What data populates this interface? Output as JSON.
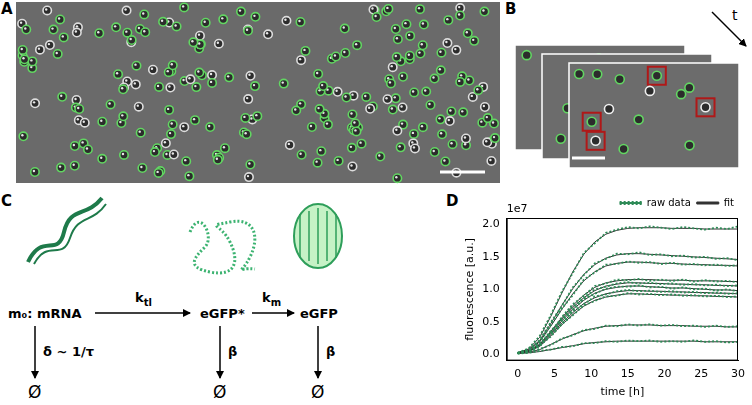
{
  "panels": [
    {
      "letter": "A",
      "type": "image"
    },
    {
      "letter": "B",
      "type": "image",
      "time_arrow_label": "t"
    },
    {
      "letter": "C",
      "type": "diagram",
      "species": [
        {
          "label": "m₀: mRNA",
          "decay": "δ ~ 1/τ",
          "sink": "Ø"
        },
        {
          "label": "eGFP*",
          "decay": "β",
          "sink": "Ø"
        },
        {
          "label": "eGFP",
          "decay": "β",
          "sink": "Ø"
        }
      ],
      "rates": [
        {
          "symbol": "k",
          "subscript": "tl"
        },
        {
          "symbol": "k",
          "subscript": "m"
        }
      ]
    }
  ],
  "chart_data": {
    "panel": "D",
    "type": "line",
    "x_label": "time [h]",
    "y_label": "fluorescence [a.u.]",
    "y_scale_label": "1e7",
    "grid": false,
    "legend": "top right",
    "xlim": [
      -1.5,
      30
    ],
    "xticks": [
      0,
      5,
      10,
      15,
      20,
      25,
      30
    ],
    "ylim": [
      -0.1,
      2.1
    ],
    "yticks": [
      {
        "value": 0,
        "label": "0.0"
      },
      {
        "value": 0.5,
        "label": "0.5"
      },
      {
        "value": 1,
        "label": "1.0"
      },
      {
        "value": 1.5,
        "label": "1.5"
      },
      {
        "value": 2,
        "label": "2.0"
      }
    ],
    "x": [
      0,
      1.5,
      3,
      4.5,
      6,
      7.5,
      9,
      10.5,
      12,
      13.5,
      15,
      16.5,
      18,
      19.5,
      21,
      22.5,
      24,
      25.5,
      27,
      28.5,
      30
    ],
    "series": [
      {
        "name": "raw data",
        "color": "#2e8b57",
        "line_style": "dotted",
        "curves": [
          [
            0.02,
            0.09,
            0.28,
            0.6,
            0.96,
            1.25,
            1.56,
            1.71,
            1.87,
            1.92,
            1.96,
            1.94,
            1.97,
            1.95,
            1.93,
            1.96,
            1.94,
            1.92,
            1.95,
            1.93,
            1.97
          ],
          [
            0.02,
            0.06,
            0.22,
            0.49,
            0.74,
            1.03,
            1.22,
            1.4,
            1.47,
            1.55,
            1.54,
            1.57,
            1.53,
            1.54,
            1.51,
            1.52,
            1.49,
            1.5,
            1.47,
            1.48,
            1.45
          ],
          [
            0.01,
            0.07,
            0.18,
            0.45,
            0.7,
            0.91,
            1.15,
            1.26,
            1.38,
            1.39,
            1.43,
            1.41,
            1.42,
            1.39,
            1.41,
            1.38,
            1.39,
            1.37,
            1.38,
            1.36,
            1.37
          ],
          [
            0.02,
            0.06,
            0.16,
            0.33,
            0.57,
            0.77,
            0.9,
            1.05,
            1.09,
            1.15,
            1.14,
            1.16,
            1.13,
            1.15,
            1.13,
            1.15,
            1.12,
            1.14,
            1.12,
            1.13,
            1.11
          ],
          [
            0.01,
            0.05,
            0.14,
            0.36,
            0.53,
            0.73,
            0.86,
            1.0,
            1.04,
            1.09,
            1.11,
            1.09,
            1.1,
            1.08,
            1.09,
            1.07,
            1.08,
            1.06,
            1.07,
            1.05,
            1.06
          ],
          [
            0.02,
            0.04,
            0.15,
            0.31,
            0.52,
            0.68,
            0.85,
            0.93,
            1.01,
            1.04,
            1.04,
            1.06,
            1.03,
            1.04,
            1.01,
            1.03,
            1.0,
            1.01,
            0.98,
            1.0,
            0.97
          ],
          [
            0.02,
            0.05,
            0.12,
            0.31,
            0.47,
            0.66,
            0.77,
            0.89,
            0.92,
            0.97,
            0.99,
            0.97,
            0.98,
            0.96,
            0.97,
            0.95,
            0.96,
            0.94,
            0.95,
            0.93,
            0.94
          ],
          [
            0.01,
            0.04,
            0.13,
            0.27,
            0.46,
            0.6,
            0.75,
            0.82,
            0.89,
            0.9,
            0.94,
            0.92,
            0.93,
            0.91,
            0.92,
            0.9,
            0.91,
            0.89,
            0.9,
            0.88,
            0.89
          ],
          [
            0.01,
            0.03,
            0.08,
            0.14,
            0.24,
            0.29,
            0.37,
            0.39,
            0.44,
            0.43,
            0.46,
            0.44,
            0.46,
            0.44,
            0.45,
            0.43,
            0.44,
            0.42,
            0.44,
            0.42,
            0.43
          ],
          [
            0.01,
            0.02,
            0.05,
            0.07,
            0.11,
            0.12,
            0.17,
            0.17,
            0.2,
            0.19,
            0.21,
            0.2,
            0.21,
            0.19,
            0.2,
            0.19,
            0.21,
            0.19,
            0.2,
            0.18,
            0.19
          ]
        ]
      },
      {
        "name": "fit",
        "color": "#333333",
        "line_style": "solid",
        "curves": [
          [
            0.02,
            0.08,
            0.26,
            0.58,
            0.94,
            1.27,
            1.54,
            1.73,
            1.85,
            1.91,
            1.94,
            1.95,
            1.95,
            1.95,
            1.94,
            1.94,
            1.94,
            1.93,
            1.93,
            1.93,
            1.93
          ],
          [
            0.02,
            0.07,
            0.21,
            0.47,
            0.75,
            1.01,
            1.23,
            1.38,
            1.48,
            1.53,
            1.55,
            1.55,
            1.54,
            1.53,
            1.52,
            1.51,
            1.5,
            1.49,
            1.48,
            1.47,
            1.46
          ],
          [
            0.02,
            0.06,
            0.19,
            0.43,
            0.69,
            0.93,
            1.13,
            1.27,
            1.36,
            1.4,
            1.42,
            1.42,
            1.41,
            1.4,
            1.4,
            1.39,
            1.38,
            1.38,
            1.37,
            1.37,
            1.36
          ],
          [
            0.02,
            0.05,
            0.15,
            0.35,
            0.56,
            0.75,
            0.91,
            1.03,
            1.1,
            1.13,
            1.15,
            1.15,
            1.15,
            1.14,
            1.14,
            1.14,
            1.13,
            1.13,
            1.13,
            1.12,
            1.12
          ],
          [
            0.02,
            0.05,
            0.15,
            0.34,
            0.54,
            0.72,
            0.87,
            0.98,
            1.05,
            1.08,
            1.1,
            1.1,
            1.09,
            1.09,
            1.08,
            1.08,
            1.07,
            1.07,
            1.06,
            1.06,
            1.05
          ],
          [
            0.02,
            0.05,
            0.14,
            0.32,
            0.51,
            0.69,
            0.83,
            0.94,
            1.0,
            1.03,
            1.05,
            1.05,
            1.04,
            1.03,
            1.02,
            1.02,
            1.01,
            1.0,
            0.99,
            0.99,
            0.98
          ],
          [
            0.02,
            0.05,
            0.13,
            0.3,
            0.48,
            0.64,
            0.78,
            0.87,
            0.93,
            0.96,
            0.98,
            0.98,
            0.97,
            0.97,
            0.96,
            0.96,
            0.95,
            0.95,
            0.94,
            0.94,
            0.93
          ],
          [
            0.02,
            0.04,
            0.12,
            0.28,
            0.45,
            0.61,
            0.74,
            0.83,
            0.88,
            0.91,
            0.93,
            0.93,
            0.92,
            0.92,
            0.91,
            0.91,
            0.9,
            0.9,
            0.89,
            0.89,
            0.88
          ],
          [
            0.01,
            0.03,
            0.07,
            0.15,
            0.23,
            0.3,
            0.36,
            0.4,
            0.43,
            0.44,
            0.45,
            0.45,
            0.45,
            0.44,
            0.44,
            0.44,
            0.43,
            0.43,
            0.43,
            0.42,
            0.42
          ],
          [
            0.01,
            0.02,
            0.04,
            0.07,
            0.1,
            0.13,
            0.16,
            0.18,
            0.19,
            0.2,
            0.2,
            0.2,
            0.2,
            0.2,
            0.2,
            0.2,
            0.2,
            0.19,
            0.19,
            0.19,
            0.19
          ]
        ]
      }
    ]
  }
}
